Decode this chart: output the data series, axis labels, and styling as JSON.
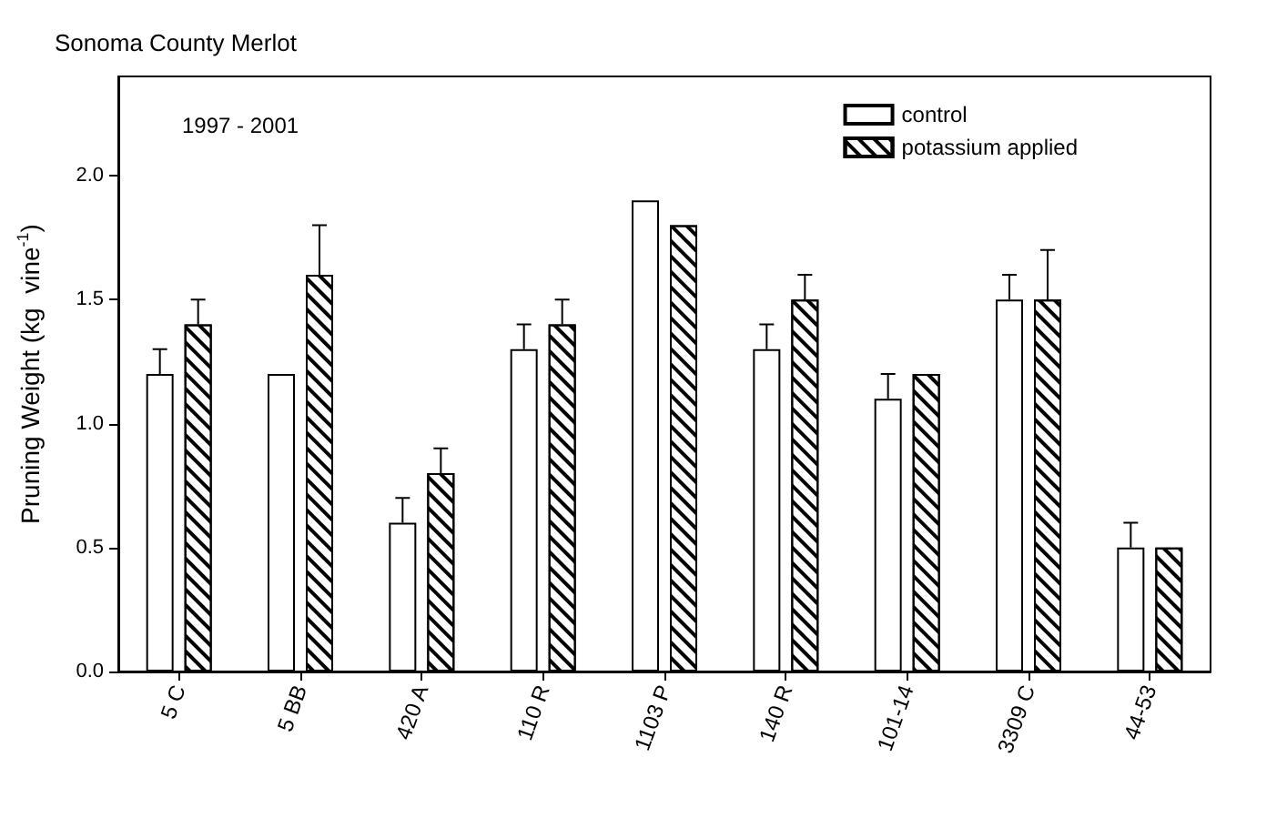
{
  "chart_data": {
    "type": "bar",
    "title": "Sonoma County Merlot",
    "ylabel": "Pruning Weight (kg  vine$^{-1}$)",
    "annotations": [
      "1997 - 2001"
    ],
    "categories": [
      "5 C",
      "5 BB",
      "420 A",
      "110 R",
      "1103 P",
      "140 R",
      "101-14",
      "3309 C",
      "44-53"
    ],
    "series": [
      {
        "name": "control",
        "color": "#ffffff",
        "values": [
          1.2,
          1.2,
          0.6,
          1.3,
          1.9,
          1.3,
          1.1,
          1.5,
          0.5
        ],
        "errors": [
          [
            1.2,
            1.3
          ],
          null,
          [
            0.6,
            0.7
          ],
          [
            1.3,
            1.4
          ],
          null,
          [
            1.3,
            1.4
          ],
          [
            1.1,
            1.2
          ],
          [
            1.5,
            1.6
          ],
          [
            0.5,
            0.6
          ]
        ]
      },
      {
        "name": "potassium applied",
        "color": "#ffffff",
        "values": [
          1.4,
          1.6,
          0.8,
          1.4,
          1.8,
          1.5,
          1.2,
          1.5,
          0.5
        ],
        "errors": [
          [
            1.4,
            1.5
          ],
          [
            1.6,
            1.8
          ],
          [
            0.8,
            0.9
          ],
          [
            1.4,
            1.5
          ],
          null,
          [
            1.5,
            1.6
          ],
          null,
          [
            1.5,
            1.7
          ],
          null
        ]
      }
    ],
    "ylim": [
      0,
      2.4
    ],
    "yticks": [
      {
        "value": 0,
        "label": "0.0"
      },
      {
        "value": 0.5,
        "label": "0.5"
      },
      {
        "value": 1,
        "label": "1.0"
      },
      {
        "value": 1.5,
        "label": "1.5"
      },
      {
        "value": 2,
        "label": "2.0"
      }
    ],
    "grid": false,
    "legend": "top right"
  }
}
